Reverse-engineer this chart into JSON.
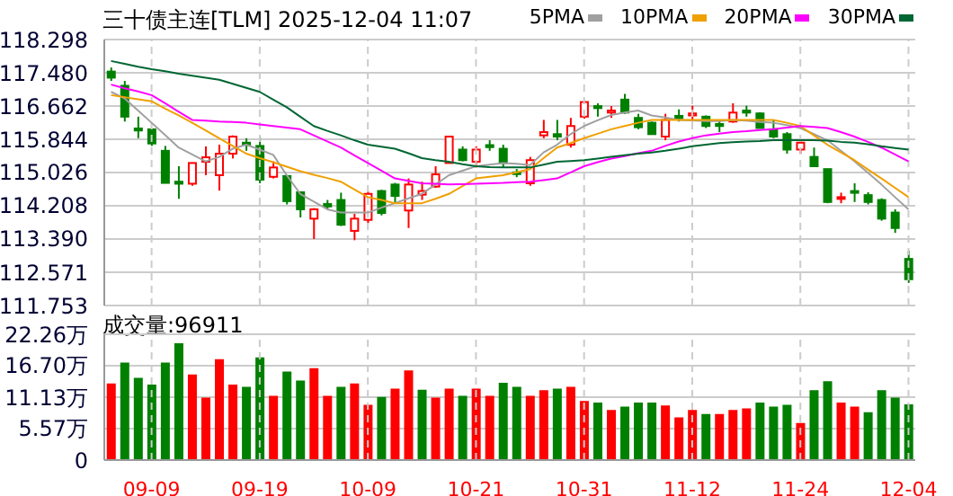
{
  "chart_data": [
    {
      "type": "candlestick",
      "title": "三十债主连[TLM] 2025-12-04 11:07",
      "categories": [
        null,
        null,
        null,
        null,
        null,
        null,
        null,
        null,
        null,
        null,
        null,
        null,
        null,
        null,
        null,
        null,
        null,
        null,
        null,
        null,
        null,
        null,
        null,
        null,
        null,
        null,
        null,
        null,
        null,
        null,
        null,
        null,
        null,
        null,
        null,
        null,
        null,
        null,
        null,
        null,
        null,
        null,
        null,
        null,
        null,
        null,
        null,
        null,
        null,
        null,
        null,
        null,
        null,
        null,
        null,
        null,
        null,
        null,
        null,
        null
      ],
      "ohlc": [
        [
          117.51,
          117.61,
          117.28,
          117.36
        ],
        [
          117.16,
          117.28,
          116.28,
          116.4
        ],
        [
          116.11,
          116.4,
          115.87,
          116.06
        ],
        [
          116.09,
          116.09,
          115.68,
          115.74
        ],
        [
          115.56,
          115.68,
          114.76,
          114.77
        ],
        [
          114.8,
          115.18,
          114.38,
          114.75
        ],
        [
          114.75,
          115.26,
          114.7,
          115.26
        ],
        [
          115.29,
          115.67,
          114.96,
          115.4
        ],
        [
          114.96,
          115.71,
          114.58,
          115.49
        ],
        [
          115.49,
          115.94,
          115.37,
          115.91
        ],
        [
          115.76,
          115.87,
          115.56,
          115.71
        ],
        [
          115.68,
          115.91,
          114.76,
          114.85
        ],
        [
          114.92,
          115.3,
          114.88,
          115.15
        ],
        [
          114.94,
          114.94,
          114.24,
          114.32
        ],
        [
          114.54,
          114.54,
          113.92,
          114.12
        ],
        [
          113.89,
          114.15,
          113.39,
          114.12
        ],
        [
          114.25,
          114.35,
          114.12,
          114.19
        ],
        [
          114.35,
          114.53,
          113.71,
          113.74
        ],
        [
          113.59,
          114.01,
          113.36,
          113.89
        ],
        [
          113.86,
          114.57,
          113.78,
          114.5
        ],
        [
          114.57,
          114.6,
          113.97,
          114.03
        ],
        [
          114.73,
          114.77,
          114.27,
          114.45
        ],
        [
          114.09,
          114.88,
          113.66,
          114.73
        ],
        [
          114.48,
          114.8,
          114.35,
          114.57
        ],
        [
          114.68,
          115.18,
          114.65,
          114.98
        ],
        [
          115.26,
          115.91,
          115.26,
          115.91
        ],
        [
          115.59,
          115.67,
          115.3,
          115.33
        ],
        [
          115.29,
          115.67,
          115.15,
          115.59
        ],
        [
          115.7,
          115.82,
          115.56,
          115.65
        ],
        [
          115.61,
          115.71,
          115.15,
          115.26
        ],
        [
          115.03,
          115.11,
          114.91,
          114.99
        ],
        [
          114.76,
          115.41,
          114.7,
          115.33
        ],
        [
          115.94,
          116.32,
          115.87,
          116.02
        ],
        [
          115.97,
          116.32,
          115.82,
          115.91
        ],
        [
          115.71,
          116.37,
          115.64,
          116.17
        ],
        [
          116.4,
          116.78,
          116.35,
          116.76
        ],
        [
          116.66,
          116.73,
          116.4,
          116.61
        ],
        [
          116.5,
          116.66,
          116.37,
          116.55
        ],
        [
          116.82,
          116.96,
          116.47,
          116.5
        ],
        [
          116.37,
          116.47,
          116.09,
          116.14
        ],
        [
          116.25,
          116.28,
          115.97,
          115.97
        ],
        [
          115.91,
          116.47,
          115.82,
          116.32
        ],
        [
          116.42,
          116.58,
          116.28,
          116.36
        ],
        [
          116.43,
          116.67,
          116.28,
          116.48
        ],
        [
          116.4,
          116.43,
          116.12,
          116.17
        ],
        [
          116.22,
          116.32,
          116.02,
          116.17
        ],
        [
          116.28,
          116.73,
          116.25,
          116.5
        ],
        [
          116.55,
          116.67,
          116.4,
          116.5
        ],
        [
          116.48,
          116.51,
          116.12,
          116.12
        ],
        [
          116.09,
          116.32,
          115.87,
          115.91
        ],
        [
          115.97,
          116.02,
          115.49,
          115.59
        ],
        [
          115.59,
          115.82,
          115.49,
          115.76
        ],
        [
          115.41,
          115.64,
          115.18,
          115.18
        ],
        [
          115.11,
          115.11,
          114.27,
          114.3
        ],
        [
          114.4,
          114.53,
          114.27,
          114.42
        ],
        [
          114.57,
          114.76,
          114.3,
          114.53
        ],
        [
          114.47,
          114.54,
          114.24,
          114.3
        ],
        [
          114.35,
          114.39,
          113.84,
          113.89
        ],
        [
          114.04,
          114.12,
          113.54,
          113.66
        ],
        [
          112.9,
          113.1,
          112.31,
          112.4
        ]
      ],
      "colors": [
        "#008000",
        "#008000",
        "#008000",
        "#008000",
        "#008000",
        "#008000",
        "#ff0000",
        "#ff0000",
        "#ff0000",
        "#ff0000",
        "#008000",
        "#008000",
        "#ff0000",
        "#008000",
        "#008000",
        "#ff0000",
        "#008000",
        "#008000",
        "#ff0000",
        "#ff0000",
        "#008000",
        "#008000",
        "#ff0000",
        "#ff0000",
        "#ff0000",
        "#ff0000",
        "#008000",
        "#ff0000",
        "#008000",
        "#008000",
        "#008000",
        "#ff0000",
        "#ff0000",
        "#008000",
        "#ff0000",
        "#ff0000",
        "#008000",
        "#ff0000",
        "#008000",
        "#008000",
        "#008000",
        "#ff0000",
        "#008000",
        "#ff0000",
        "#008000",
        "#008000",
        "#ff0000",
        "#008000",
        "#008000",
        "#008000",
        "#008000",
        "#ff0000",
        "#008000",
        "#008000",
        "#ff0000",
        "#008000",
        "#008000",
        "#008000",
        "#008000",
        "#008000"
      ],
      "series": [
        {
          "type": "line",
          "name": "5PMA",
          "color": "#a0a0a0",
          "values": [
            117.01,
            116.85,
            116.55,
            116.25,
            115.95,
            115.64,
            115.47,
            115.3,
            115.41,
            115.61,
            115.71,
            115.59,
            115.46,
            114.96,
            114.5,
            114.31,
            114.12,
            114.04,
            114.04,
            114.04,
            114.16,
            114.27,
            114.39,
            114.5,
            114.73,
            114.96,
            115.07,
            115.18,
            115.22,
            115.26,
            115.24,
            115.21,
            115.52,
            115.71,
            115.97,
            116.17,
            116.31,
            116.44,
            116.5,
            116.55,
            116.43,
            116.38,
            116.32,
            116.31,
            116.29,
            116.29,
            116.32,
            116.3,
            116.27,
            116.25,
            116.19,
            116.12,
            115.97,
            115.82,
            115.56,
            115.3,
            115.02,
            114.73,
            114.42,
            114.12
          ]
        },
        {
          "type": "line",
          "name": "10PMA",
          "color": "#f0a000",
          "values": [
            116.93,
            116.88,
            116.83,
            116.78,
            116.6,
            116.43,
            116.25,
            116.06,
            115.87,
            115.68,
            115.49,
            115.38,
            115.28,
            115.17,
            115.06,
            114.97,
            114.89,
            114.8,
            114.61,
            114.42,
            114.35,
            114.27,
            114.27,
            114.27,
            114.38,
            114.5,
            114.69,
            114.88,
            114.92,
            114.96,
            115.03,
            115.11,
            115.38,
            115.64,
            115.75,
            115.87,
            115.98,
            116.09,
            116.17,
            116.25,
            116.32,
            116.32,
            116.32,
            116.32,
            116.32,
            116.32,
            116.32,
            116.32,
            116.32,
            116.32,
            116.25,
            116.17,
            115.94,
            115.71,
            115.52,
            115.33,
            115.1,
            114.88,
            114.65,
            114.42
          ]
        },
        {
          "type": "line",
          "name": "20PMA",
          "color": "#ff00ff",
          "values": [
            117.19,
            117.1,
            117.02,
            116.93,
            116.73,
            116.52,
            116.32,
            116.3,
            116.28,
            116.27,
            116.25,
            116.21,
            116.17,
            116.13,
            116.09,
            115.94,
            115.79,
            115.64,
            115.45,
            115.26,
            115.07,
            114.88,
            114.82,
            114.76,
            114.75,
            114.73,
            114.74,
            114.75,
            114.76,
            114.77,
            114.79,
            114.8,
            114.84,
            114.88,
            115.03,
            115.18,
            115.28,
            115.37,
            115.43,
            115.5,
            115.56,
            115.68,
            115.79,
            115.87,
            115.94,
            115.98,
            116.02,
            116.04,
            116.07,
            116.09,
            116.13,
            116.17,
            116.15,
            116.12,
            116.02,
            115.91,
            115.78,
            115.64,
            115.47,
            115.3
          ]
        },
        {
          "type": "line",
          "name": "30PMA",
          "color": "#006633",
          "values": [
            117.77,
            117.7,
            117.63,
            117.57,
            117.52,
            117.46,
            117.41,
            117.36,
            117.31,
            117.21,
            117.11,
            117.01,
            116.82,
            116.63,
            116.4,
            116.17,
            116.05,
            115.94,
            115.82,
            115.71,
            115.66,
            115.61,
            115.5,
            115.38,
            115.33,
            115.29,
            115.23,
            115.18,
            115.16,
            115.15,
            115.15,
            115.15,
            115.22,
            115.29,
            115.31,
            115.33,
            115.37,
            115.41,
            115.45,
            115.49,
            115.52,
            115.56,
            115.61,
            115.67,
            115.71,
            115.75,
            115.77,
            115.79,
            115.8,
            115.82,
            115.82,
            115.82,
            115.82,
            115.81,
            115.78,
            115.76,
            115.72,
            115.67,
            115.63,
            115.59
          ]
        }
      ],
      "ylim": [
        111.753,
        118.298
      ],
      "yticks": [
        111.753,
        112.571,
        {
          "value": 113.39,
          "label": "113.390"
        },
        114.208,
        115.026,
        115.844,
        116.662,
        {
          "value": 117.48,
          "label": "117.480"
        },
        118.298
      ],
      "grid": true,
      "legend": "top right",
      "tick_labels": "y"
    },
    {
      "type": "bar",
      "title": "成交量:96911",
      "categories": [
        null,
        null,
        null,
        "09-09",
        null,
        null,
        null,
        null,
        null,
        null,
        null,
        "09-19",
        null,
        null,
        null,
        null,
        null,
        null,
        null,
        "10-09",
        null,
        null,
        null,
        null,
        null,
        null,
        null,
        "10-21",
        null,
        null,
        null,
        null,
        null,
        null,
        null,
        "10-31",
        null,
        null,
        null,
        null,
        null,
        null,
        null,
        "11-12",
        null,
        null,
        null,
        null,
        null,
        null,
        null,
        "11-24",
        null,
        null,
        null,
        null,
        null,
        null,
        null,
        "12-04"
      ],
      "values": [
        13.4,
        17.1,
        14.4,
        13.2,
        17.1,
        20.5,
        15.0,
        10.9,
        17.7,
        13.2,
        12.8,
        18.0,
        11.2,
        15.5,
        13.9,
        16.1,
        11.2,
        12.8,
        13.4,
        9.6,
        11.0,
        12.5,
        15.7,
        12.3,
        10.9,
        12.5,
        11.2,
        12.5,
        11.2,
        13.5,
        12.8,
        11.2,
        12.2,
        12.5,
        12.8,
        10.3,
        10.0,
        8.7,
        9.3,
        10.0,
        10.0,
        9.5,
        7.4,
        8.7,
        8.0,
        8.0,
        8.7,
        9.0,
        10.0,
        9.3,
        9.6,
        6.4,
        12.2,
        13.8,
        10.0,
        9.3,
        8.3,
        12.2,
        10.9,
        9.7
      ],
      "colors": [
        "#ff0000",
        "#008000",
        "#008000",
        "#008000",
        "#008000",
        "#008000",
        "#ff0000",
        "#ff0000",
        "#ff0000",
        "#ff0000",
        "#008000",
        "#008000",
        "#ff0000",
        "#008000",
        "#008000",
        "#ff0000",
        "#ff0000",
        "#008000",
        "#ff0000",
        "#ff0000",
        "#008000",
        "#ff0000",
        "#ff0000",
        "#008000",
        "#ff0000",
        "#ff0000",
        "#008000",
        "#ff0000",
        "#ff0000",
        "#008000",
        "#008000",
        "#ff0000",
        "#ff0000",
        "#008000",
        "#ff0000",
        "#ff0000",
        "#008000",
        "#ff0000",
        "#008000",
        "#008000",
        "#008000",
        "#ff0000",
        "#ff0000",
        "#ff0000",
        "#008000",
        "#ff0000",
        "#ff0000",
        "#ff0000",
        "#008000",
        "#008000",
        "#008000",
        "#ff0000",
        "#008000",
        "#008000",
        "#ff0000",
        "#ff0000",
        "#008000",
        "#008000",
        "#008000",
        "#008000"
      ],
      "ylim": [
        0,
        22.26
      ],
      "yticks": [
        0,
        {
          "value": 5.57,
          "label": "5.57万"
        },
        {
          "value": 11.13,
          "label": "11.13万"
        },
        {
          "value": 16.7,
          "label": "16.70万"
        },
        {
          "value": 22.26,
          "label": "22.26万"
        }
      ],
      "grid": true
    }
  ]
}
